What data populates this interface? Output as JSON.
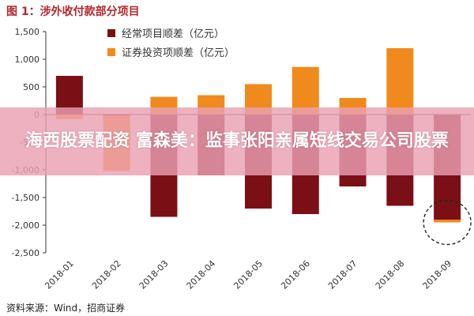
{
  "figure": {
    "title": "图 1：涉外收付款部分项目",
    "source": "资料来源：Wind，招商证券"
  },
  "banner": {
    "text": "海西股票配资 富森美：监事张阳亲属短线交易公司股票"
  },
  "colors": {
    "series1": "#7b0f16",
    "series2": "#f08a1c",
    "axis": "#333333",
    "banner_bg": "#e9a0b2",
    "title": "#b2262b",
    "highlight_circle": "#222222"
  },
  "chart_data": {
    "type": "bar",
    "stacked": true,
    "categories": [
      "2018-01",
      "2018-02",
      "2018-03",
      "2018-04",
      "2018-05",
      "2018-06",
      "2018-07",
      "2018-08",
      "2018-09"
    ],
    "series": [
      {
        "name": "经常项目顺差（亿元）",
        "values": [
          700,
          -20,
          -1850,
          -1100,
          -1700,
          -1800,
          -1300,
          -1650,
          -1900
        ],
        "color": "#7b0f16"
      },
      {
        "name": "证券投资项顺差（亿元）",
        "values": [
          -80,
          -1000,
          320,
          350,
          550,
          860,
          300,
          1200,
          -50
        ],
        "color": "#f08a1c"
      }
    ],
    "ylim": [
      -2500,
      1500
    ],
    "yticks": [
      1500,
      1000,
      500,
      0,
      -500,
      -1000,
      -1500,
      -2000,
      -2500
    ],
    "ytick_labels": [
      "1,500",
      "1,000",
      "500",
      "0",
      "-500",
      "-1,000",
      "-1,500",
      "-2,000",
      "-2,500"
    ],
    "legend_position": "top-center",
    "grid": false,
    "annotation": "dashed circle around 2018-09"
  }
}
